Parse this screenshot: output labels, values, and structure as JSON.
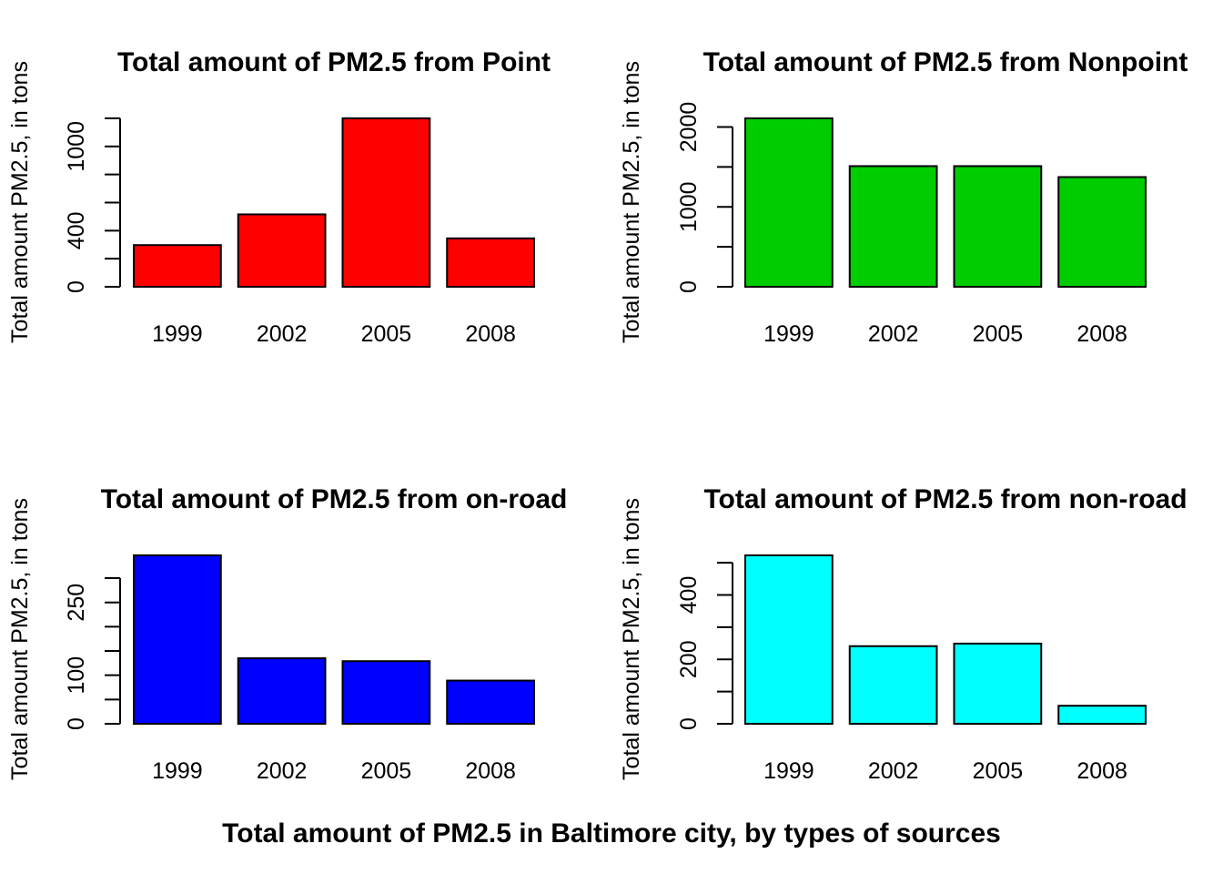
{
  "outer_title": "Total amount of PM2.5 in Baltimore city, by types of sources",
  "chart_data": [
    {
      "type": "bar",
      "title": "Total amount of PM2.5 from Point",
      "ylabel": "Total amount PM2.5, in tons",
      "xlabel": "",
      "categories": [
        "1999",
        "2002",
        "2005",
        "2008"
      ],
      "values": [
        297,
        516,
        1200,
        345
      ],
      "ylim": [
        0,
        1200
      ],
      "yticks": [
        0,
        200,
        400,
        600,
        800,
        1000,
        1200
      ],
      "ytick_labels": [
        "0",
        "",
        "400",
        "",
        "",
        "1000",
        ""
      ],
      "color": "#ff0000"
    },
    {
      "type": "bar",
      "title": "Total amount of PM2.5 from Nonpoint",
      "ylabel": "Total amount PM2.5, in tons",
      "xlabel": "",
      "categories": [
        "1999",
        "2002",
        "2005",
        "2008"
      ],
      "values": [
        2108,
        1510,
        1510,
        1373
      ],
      "ylim": [
        0,
        2108
      ],
      "yticks": [
        0,
        500,
        1000,
        1500,
        2000
      ],
      "ytick_labels": [
        "0",
        "",
        "1000",
        "",
        "2000"
      ],
      "color": "#00cd00"
    },
    {
      "type": "bar",
      "title": "Total amount of PM2.5 from on-road",
      "ylabel": "Total amount PM2.5, in tons",
      "xlabel": "",
      "categories": [
        "1999",
        "2002",
        "2005",
        "2008"
      ],
      "values": [
        347,
        135,
        129,
        89
      ],
      "ylim": [
        0,
        347
      ],
      "yticks": [
        0,
        50,
        100,
        150,
        200,
        250,
        300
      ],
      "ytick_labels": [
        "0",
        "",
        "100",
        "",
        "",
        "250",
        ""
      ],
      "color": "#0000ff"
    },
    {
      "type": "bar",
      "title": "Total amount of PM2.5 from non-road",
      "ylabel": "Total amount PM2.5, in tons",
      "xlabel": "",
      "categories": [
        "1999",
        "2002",
        "2005",
        "2008"
      ],
      "values": [
        523,
        241,
        249,
        56
      ],
      "ylim": [
        0,
        523
      ],
      "yticks": [
        0,
        100,
        200,
        300,
        400,
        500
      ],
      "ytick_labels": [
        "0",
        "",
        "200",
        "",
        "400",
        ""
      ],
      "color": "#00ffff"
    }
  ]
}
